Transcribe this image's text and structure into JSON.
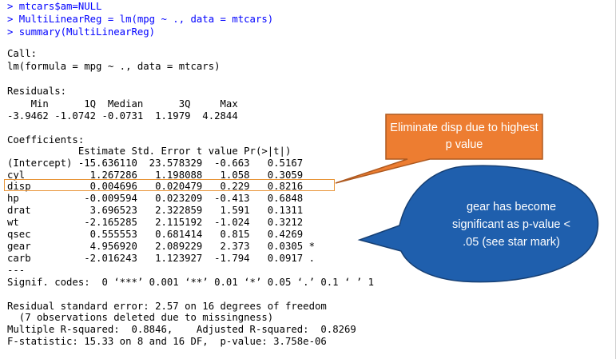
{
  "console": {
    "colors": {
      "command": "#0000ff",
      "output": "#000000"
    },
    "commands": [
      "> mtcars$am=NULL",
      "> MultiLinearReg = lm(mpg ~ ., data = mtcars)",
      "> summary(MultiLinearReg)"
    ],
    "output": {
      "call_label": "Call:",
      "call": "lm(formula = mpg ~ ., data = mtcars)",
      "residuals_label": "Residuals:",
      "residuals_header": "    Min      1Q  Median      3Q     Max ",
      "residuals_values": "-3.9462 -1.0742 -0.0731  1.1979  4.2844 ",
      "coefficients_label": "Coefficients:",
      "coefficients_header": "            Estimate Std. Error t value Pr(>|t|)  ",
      "coefficient_rows": [
        "(Intercept) -15.636110  23.578329  -0.663   0.5167  ",
        "cyl           1.267286   1.198088   1.058   0.3059  ",
        "disp          0.004696   0.020479   0.229   0.8216  ",
        "hp           -0.009594   0.023209  -0.413   0.6848  ",
        "drat          3.696523   2.322859   1.591   0.1311  ",
        "wt           -2.165285   2.115192  -1.024   0.3212  ",
        "qsec          0.555553   0.681414   0.815   0.4269  ",
        "gear          4.956920   2.089229   2.373   0.0305 *",
        "carb         -2.016243   1.123927  -1.794   0.0917 ."
      ],
      "separator": "---",
      "signif_codes": "Signif. codes:  0 ‘***’ 0.001 ‘**’ 0.01 ‘*’ 0.05 ‘.’ 0.1 ‘ ’ 1",
      "residual_se": "Residual standard error: 2.57 on 16 degrees of freedom",
      "missingness": "  (7 observations deleted due to missingness)",
      "r_squared": "Multiple R-squared:  0.8846,\tAdjusted R-squared:  0.8269 ",
      "f_statistic": "F-statistic: 15.33 on 8 and 16 DF,  p-value: 3.758e-06"
    }
  },
  "annotations": {
    "orange_callout": {
      "text": "Eliminate disp due to highest p value",
      "color": "#ed7d31",
      "border_color": "#ae5a21"
    },
    "blue_callout": {
      "text": "gear has become significant as p-value < .05 (see star mark)",
      "color": "#1f5fad",
      "border_color": "#163f73"
    },
    "highlight_box_color": "#e8963a"
  }
}
